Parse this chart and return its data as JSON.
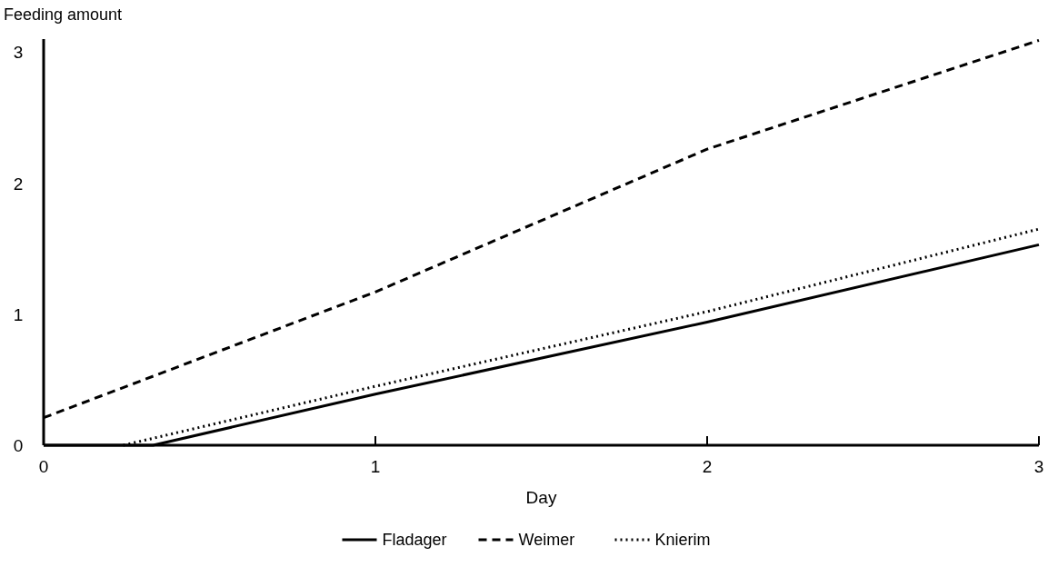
{
  "chart_data": {
    "type": "line",
    "xlabel": "Day",
    "ylabel": "Feeding amount",
    "xlim": [
      0,
      3
    ],
    "ylim": [
      0,
      3.1
    ],
    "xticks": [
      0,
      1,
      2,
      3
    ],
    "yticks": [
      0,
      1,
      2,
      3
    ],
    "grid": false,
    "legend": "bottom",
    "marker": "none",
    "series": [
      {
        "name": "Fladager",
        "color": "#000000",
        "line_style": "solid",
        "x": [
          0,
          0.33,
          1,
          2,
          3
        ],
        "values": [
          0,
          0,
          0.39,
          0.94,
          1.53
        ]
      },
      {
        "name": "Weimer",
        "color": "#000000",
        "line_style": "dashed",
        "x": [
          0,
          1,
          2,
          3
        ],
        "values": [
          0.21,
          1.17,
          2.26,
          3.09
        ]
      },
      {
        "name": "Knierim",
        "color": "#000000",
        "line_style": "dotted",
        "x": [
          0.24,
          1,
          2,
          3
        ],
        "values": [
          0,
          0.45,
          1.02,
          1.65
        ]
      }
    ]
  }
}
